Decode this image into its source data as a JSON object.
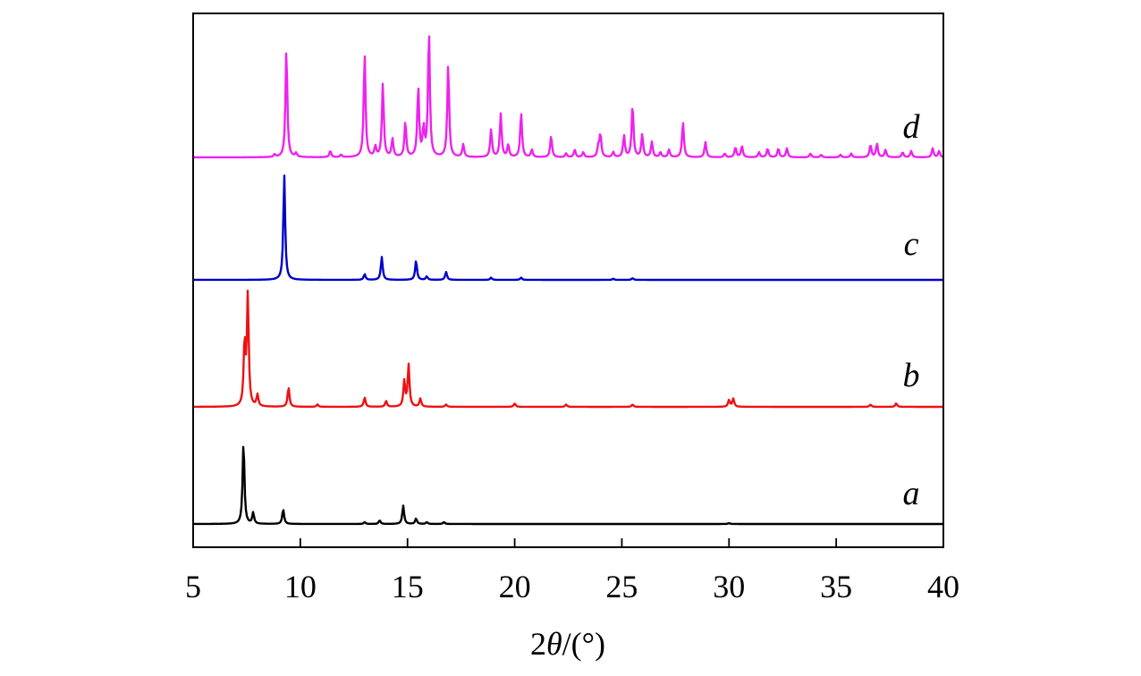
{
  "chart_data": {
    "type": "line",
    "xlabel": {
      "prefix": "2",
      "italic": "θ",
      "suffix": "/(°)"
    },
    "xlim": [
      5,
      40
    ],
    "xticks": [
      5,
      10,
      15,
      20,
      25,
      30,
      35,
      40
    ],
    "yaxis": {
      "ticks": false,
      "labels": false
    },
    "grid": false,
    "legend": "none",
    "series": [
      {
        "name": "a",
        "color": "#000000",
        "peaks": [
          [
            7.35,
            90
          ],
          [
            7.8,
            12
          ],
          [
            9.2,
            16
          ],
          [
            13.0,
            2
          ],
          [
            13.7,
            4
          ],
          [
            14.8,
            20
          ],
          [
            15.4,
            6
          ],
          [
            15.9,
            2
          ],
          [
            16.7,
            2
          ],
          [
            30.0,
            1
          ]
        ]
      },
      {
        "name": "b",
        "color": "#ee1111",
        "peaks": [
          [
            7.4,
            55
          ],
          [
            7.55,
            95
          ],
          [
            8.0,
            10
          ],
          [
            9.45,
            17
          ],
          [
            10.8,
            2
          ],
          [
            13.0,
            8
          ],
          [
            14.0,
            5
          ],
          [
            14.85,
            22
          ],
          [
            15.05,
            36
          ],
          [
            15.6,
            7
          ],
          [
            16.8,
            2
          ],
          [
            20.0,
            3
          ],
          [
            22.4,
            2
          ],
          [
            25.5,
            2
          ],
          [
            30.0,
            6
          ],
          [
            30.2,
            7
          ],
          [
            36.6,
            2
          ],
          [
            37.8,
            3
          ]
        ]
      },
      {
        "name": "c",
        "color": "#0000cc",
        "peaks": [
          [
            9.25,
            92
          ],
          [
            13.0,
            5
          ],
          [
            13.8,
            20
          ],
          [
            15.4,
            17
          ],
          [
            15.9,
            3
          ],
          [
            16.8,
            7
          ],
          [
            18.9,
            2
          ],
          [
            20.3,
            2
          ],
          [
            24.6,
            1
          ],
          [
            25.5,
            1.5
          ]
        ]
      },
      {
        "name": "d",
        "color": "#ee22ee",
        "peaks": [
          [
            8.8,
            2
          ],
          [
            9.35,
            86
          ],
          [
            9.8,
            3
          ],
          [
            11.4,
            5
          ],
          [
            11.9,
            2
          ],
          [
            13.0,
            82
          ],
          [
            13.5,
            8
          ],
          [
            13.85,
            58
          ],
          [
            14.3,
            14
          ],
          [
            14.9,
            28
          ],
          [
            15.5,
            55
          ],
          [
            15.75,
            22
          ],
          [
            16.0,
            100
          ],
          [
            16.9,
            74
          ],
          [
            17.6,
            10
          ],
          [
            18.9,
            22
          ],
          [
            19.35,
            34
          ],
          [
            19.7,
            10
          ],
          [
            20.3,
            35
          ],
          [
            20.8,
            6
          ],
          [
            21.7,
            17
          ],
          [
            22.4,
            3
          ],
          [
            22.8,
            6
          ],
          [
            23.2,
            4
          ],
          [
            23.9,
            8
          ],
          [
            24.0,
            18
          ],
          [
            24.6,
            4
          ],
          [
            25.1,
            17
          ],
          [
            25.5,
            42
          ],
          [
            25.95,
            18
          ],
          [
            26.4,
            12
          ],
          [
            26.8,
            4
          ],
          [
            27.2,
            6
          ],
          [
            27.85,
            28
          ],
          [
            28.9,
            12
          ],
          [
            29.8,
            3
          ],
          [
            30.3,
            8
          ],
          [
            30.6,
            9
          ],
          [
            31.4,
            4
          ],
          [
            31.8,
            7
          ],
          [
            32.3,
            7
          ],
          [
            32.7,
            7
          ],
          [
            33.8,
            3
          ],
          [
            34.3,
            2
          ],
          [
            35.2,
            2
          ],
          [
            35.7,
            3
          ],
          [
            36.6,
            10
          ],
          [
            36.9,
            11
          ],
          [
            37.3,
            6
          ],
          [
            38.1,
            4
          ],
          [
            38.5,
            5
          ],
          [
            39.5,
            7
          ],
          [
            39.8,
            5
          ]
        ]
      }
    ]
  }
}
